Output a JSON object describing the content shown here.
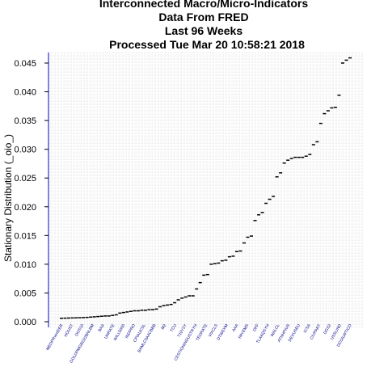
{
  "chart_data": {
    "type": "scatter",
    "title": [
      "Interconnected Macro/Micro-Indicators",
      "Data From FRED",
      "Last  96  Weeks",
      "Processed  Tue Mar 20 10:58:21 2018"
    ],
    "xlabel": "",
    "ylabel": "Stationary Distribution (_oio_)",
    "ylim": [
      0,
      0.047
    ],
    "yticks": [
      "0.000",
      "0.005",
      "0.010",
      "0.015",
      "0.020",
      "0.025",
      "0.030",
      "0.035",
      "0.040",
      "0.045"
    ],
    "ytick_values": [
      0,
      0.005,
      0.01,
      0.015,
      0.02,
      0.025,
      0.03,
      0.035,
      0.04,
      0.045
    ],
    "grid": true,
    "point_color": "#000000",
    "tick_label_color": "#00008b",
    "axis_color": "#0000cd",
    "grid_color": "#d3d3d3",
    "xtick_labels": [
      "MEDPRvertEER",
      "HOUST",
      "DGS10",
      "GOLDPMGBD228NLBM",
      "BAA",
      "UNRATE",
      "WILL5000",
      "INDPRO",
      "CPIAUCSL",
      "BAMLC0A4CBBB",
      "M2",
      "TCU",
      "T10Y2Y",
      "CESTIONINDUSTRYH",
      "TEDRATE",
      "VIXCLS",
      "DTWEXM",
      "AAA",
      "PAYEMS",
      "DFF",
      "TLAAQSYH",
      "WALCL",
      "ATNHPIUS",
      "DEXUSEU",
      "ICSA",
      "CIVPART",
      "DGS2",
      "USSLIND",
      "DCOILWTICO"
    ],
    "values": [
      0.0006,
      0.00062,
      0.00064,
      0.00066,
      0.00068,
      0.0007,
      0.00072,
      0.00075,
      0.0008,
      0.00085,
      0.0009,
      0.00095,
      0.001,
      0.001,
      0.0011,
      0.0012,
      0.0015,
      0.0016,
      0.0017,
      0.0018,
      0.0019,
      0.0019,
      0.002,
      0.002,
      0.0021,
      0.0021,
      0.0022,
      0.0026,
      0.0028,
      0.0029,
      0.003,
      0.0033,
      0.0038,
      0.0041,
      0.0043,
      0.0045,
      0.0045,
      0.0057,
      0.0068,
      0.0081,
      0.0082,
      0.01,
      0.0101,
      0.0102,
      0.0106,
      0.0107,
      0.0113,
      0.0114,
      0.0122,
      0.0123,
      0.0137,
      0.0147,
      0.0149,
      0.0176,
      0.0186,
      0.019,
      0.0206,
      0.0213,
      0.0218,
      0.0252,
      0.0259,
      0.0276,
      0.0281,
      0.0284,
      0.0286,
      0.0286,
      0.0286,
      0.0288,
      0.0291,
      0.0308,
      0.0313,
      0.0345,
      0.0362,
      0.0367,
      0.0372,
      0.0373,
      0.0394,
      0.045,
      0.0455,
      0.0459
    ]
  }
}
